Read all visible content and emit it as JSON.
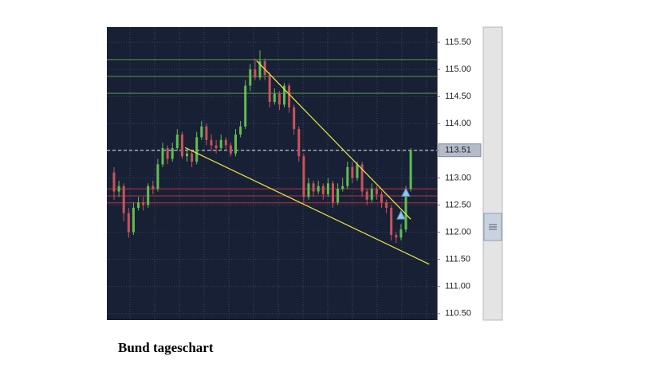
{
  "chart_data": {
    "type": "candlestick",
    "title": "Bund tageschart",
    "series": [
      {
        "open": [
          113.1,
          112.75,
          112.85,
          112.35,
          112.0,
          112.45,
          112.55,
          112.5,
          112.85,
          112.8,
          113.25,
          113.55,
          113.35,
          113.55,
          113.8,
          113.4,
          113.45,
          113.3,
          113.75,
          113.95,
          113.7,
          113.6,
          113.55,
          113.7,
          113.6,
          113.45,
          113.8,
          113.95,
          114.7,
          115.0,
          114.85,
          115.15,
          114.9,
          114.4,
          114.55,
          114.35,
          114.7,
          114.3,
          113.9,
          113.4,
          112.65,
          112.9,
          112.75,
          112.85,
          112.7,
          112.9,
          112.55,
          112.8,
          112.85,
          113.2,
          113.0,
          113.25,
          112.75,
          112.6,
          112.8,
          112.7,
          112.55,
          112.45,
          111.95,
          111.9,
          112.05,
          112.8
        ],
        "high": [
          113.2,
          112.95,
          112.9,
          112.45,
          112.55,
          112.65,
          112.65,
          112.9,
          112.95,
          113.35,
          113.65,
          113.6,
          113.65,
          113.9,
          113.85,
          113.55,
          113.5,
          113.85,
          114.05,
          114.0,
          113.8,
          113.7,
          113.8,
          113.75,
          113.65,
          113.9,
          114.05,
          114.8,
          115.1,
          115.2,
          115.35,
          115.2,
          114.95,
          114.65,
          114.6,
          114.75,
          114.75,
          114.35,
          113.95,
          113.45,
          113.0,
          112.95,
          112.95,
          112.9,
          113.0,
          112.95,
          112.9,
          113.0,
          113.3,
          113.3,
          113.3,
          113.3,
          112.8,
          112.9,
          112.85,
          112.75,
          112.6,
          112.5,
          112.0,
          112.15,
          112.85,
          113.55
        ],
        "low": [
          112.6,
          112.65,
          112.2,
          111.9,
          111.95,
          112.4,
          112.4,
          112.45,
          112.7,
          112.75,
          113.2,
          113.25,
          113.3,
          113.5,
          113.35,
          113.3,
          113.2,
          113.25,
          113.7,
          113.6,
          113.5,
          113.45,
          113.5,
          113.5,
          113.4,
          113.4,
          113.75,
          113.9,
          114.6,
          114.8,
          114.8,
          114.8,
          114.3,
          114.35,
          114.25,
          114.3,
          114.2,
          113.8,
          113.3,
          112.55,
          112.6,
          112.65,
          112.7,
          112.6,
          112.65,
          112.45,
          112.5,
          112.75,
          112.8,
          112.9,
          112.95,
          112.65,
          112.5,
          112.55,
          112.6,
          112.45,
          112.35,
          111.85,
          111.8,
          111.85,
          112.0,
          112.75
        ],
        "close": [
          112.75,
          112.85,
          112.35,
          112.0,
          112.45,
          112.55,
          112.5,
          112.85,
          112.8,
          113.25,
          113.55,
          113.35,
          113.55,
          113.8,
          113.4,
          113.45,
          113.3,
          113.75,
          113.95,
          113.7,
          113.6,
          113.55,
          113.7,
          113.6,
          113.45,
          113.8,
          113.95,
          114.7,
          115.0,
          114.85,
          115.15,
          114.9,
          114.4,
          114.55,
          114.35,
          114.7,
          114.3,
          113.9,
          113.4,
          112.65,
          112.9,
          112.75,
          112.85,
          112.7,
          112.9,
          112.55,
          112.8,
          112.85,
          113.2,
          113.0,
          113.25,
          112.75,
          112.6,
          112.8,
          112.7,
          112.55,
          112.45,
          111.95,
          111.9,
          112.05,
          112.8,
          113.51
        ]
      }
    ],
    "up_color": "#5fbf4f",
    "down_color": "#c8545a",
    "ylim": [
      110.38,
      115.78
    ],
    "yticks": [
      {
        "value": 110.5,
        "label": "110.50"
      },
      {
        "value": 111,
        "label": "111.00"
      },
      {
        "value": 111.5,
        "label": "111.50"
      },
      {
        "value": 112,
        "label": "112.00"
      },
      {
        "value": 112.5,
        "label": "112.50"
      },
      {
        "value": 113,
        "label": "113.00"
      },
      {
        "value": 113.5,
        "label": "113.50"
      },
      {
        "value": 114,
        "label": "114.00"
      },
      {
        "value": 114.5,
        "label": "114.50"
      },
      {
        "value": 115,
        "label": "115.00"
      },
      {
        "value": 115.5,
        "label": "115.50"
      }
    ],
    "grid": true,
    "last_price": 113.51,
    "levels": [
      {
        "color": "#4f9a45",
        "values": [
          115.18,
          114.87,
          114.56
        ]
      },
      {
        "color": "#b8343a",
        "values": [
          112.8,
          112.67,
          112.54
        ]
      }
    ],
    "trendlines": {
      "color": "#e6e040",
      "lines": [
        {
          "x": [
            29.3,
            61
          ],
          "values": [
            115.16,
            112.24
          ]
        },
        {
          "x": [
            14.6,
            64.8
          ],
          "values": [
            113.56,
            111.41
          ]
        }
      ]
    },
    "signals": {
      "color": "#8ec8f0",
      "x": [
        59,
        60
      ],
      "values": [
        112.3,
        112.72
      ]
    }
  }
}
